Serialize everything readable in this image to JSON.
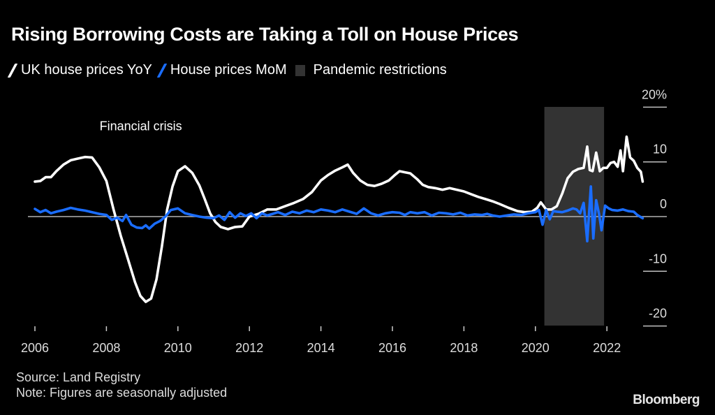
{
  "chart_data": {
    "type": "line",
    "title": "Rising Borrowing Costs are Taking a Toll on House Prices",
    "legend": [
      {
        "label": "UK house prices YoY",
        "color": "#ffffff",
        "marker": "slash"
      },
      {
        "label": "House prices MoM",
        "color": "#1a6dff",
        "marker": "slash"
      },
      {
        "label": "Pandemic restrictions",
        "color": "#333333",
        "marker": "box"
      }
    ],
    "legend_position": "top-left",
    "xlabel": "",
    "ylabel": "",
    "x_ticks": [
      "2006",
      "2008",
      "2010",
      "2012",
      "2014",
      "2016",
      "2018",
      "2020",
      "2022"
    ],
    "xlim": [
      2006,
      2023
    ],
    "y_ticks": [
      {
        "value": 20,
        "label": "20%"
      },
      {
        "value": 10,
        "label": "10"
      },
      {
        "value": 0,
        "label": "0"
      },
      {
        "value": -10,
        "label": "-10"
      },
      {
        "value": -20,
        "label": "-20"
      }
    ],
    "ylim": [
      -20,
      20
    ],
    "y_axis_side": "right",
    "zero_line": true,
    "shaded_regions": [
      {
        "label": "Pandemic restrictions",
        "start": 2020.25,
        "end": 2021.92,
        "color": "#333333"
      }
    ],
    "annotations": [
      {
        "text": "Financial crisis",
        "x": 2009.0,
        "y": 16
      }
    ],
    "series": [
      {
        "name": "UK house prices YoY",
        "color": "#ffffff",
        "x": [
          2006.0,
          2006.15,
          2006.3,
          2006.45,
          2006.6,
          2006.8,
          2007.0,
          2007.2,
          2007.4,
          2007.6,
          2007.8,
          2008.0,
          2008.2,
          2008.4,
          2008.6,
          2008.8,
          2008.95,
          2009.1,
          2009.25,
          2009.4,
          2009.55,
          2009.7,
          2009.85,
          2010.0,
          2010.2,
          2010.4,
          2010.6,
          2010.75,
          2010.9,
          2011.05,
          2011.2,
          2011.4,
          2011.6,
          2011.8,
          2012.0,
          2012.25,
          2012.5,
          2012.75,
          2013.0,
          2013.25,
          2013.5,
          2013.75,
          2014.0,
          2014.2,
          2014.4,
          2014.6,
          2014.75,
          2014.9,
          2015.1,
          2015.3,
          2015.5,
          2015.7,
          2015.9,
          2016.05,
          2016.2,
          2016.35,
          2016.5,
          2016.7,
          2016.85,
          2017.0,
          2017.2,
          2017.4,
          2017.6,
          2017.8,
          2018.0,
          2018.2,
          2018.4,
          2018.6,
          2018.8,
          2019.0,
          2019.25,
          2019.5,
          2019.7,
          2019.9,
          2020.05,
          2020.15,
          2020.3,
          2020.45,
          2020.6,
          2020.75,
          2020.9,
          2021.05,
          2021.2,
          2021.35,
          2021.45,
          2021.52,
          2021.6,
          2021.7,
          2021.8,
          2021.9,
          2022.0,
          2022.1,
          2022.2,
          2022.3,
          2022.38,
          2022.45,
          2022.55,
          2022.65,
          2022.75,
          2022.85,
          2022.95,
          2023.0
        ],
        "values": [
          6.4,
          6.5,
          7.2,
          7.2,
          8.3,
          9.5,
          10.3,
          10.6,
          10.9,
          10.8,
          9.0,
          6.5,
          1.3,
          -3.5,
          -7.7,
          -12.0,
          -14.5,
          -15.6,
          -15.0,
          -11.5,
          -5.5,
          1.3,
          5.5,
          8.3,
          9.2,
          8.0,
          5.7,
          3.2,
          0.6,
          -1.0,
          -1.9,
          -2.3,
          -1.9,
          -1.8,
          0.0,
          0.5,
          1.3,
          1.3,
          1.9,
          2.5,
          3.2,
          4.5,
          6.6,
          7.6,
          8.4,
          9.0,
          9.5,
          8.0,
          6.6,
          5.8,
          5.6,
          6.0,
          6.6,
          7.5,
          8.3,
          8.1,
          7.9,
          6.8,
          5.8,
          5.4,
          5.2,
          4.9,
          5.2,
          4.9,
          4.6,
          4.1,
          3.6,
          3.2,
          2.8,
          2.3,
          1.6,
          1.0,
          0.8,
          0.9,
          1.6,
          2.6,
          1.3,
          1.3,
          1.9,
          4.2,
          7.0,
          8.2,
          8.7,
          8.9,
          12.8,
          8.5,
          8.3,
          11.7,
          8.3,
          8.9,
          8.9,
          9.8,
          10.0,
          9.1,
          12.1,
          8.3,
          14.6,
          10.8,
          10.2,
          8.9,
          8.2,
          6.4
        ]
      },
      {
        "name": "House prices MoM",
        "color": "#1a6dff",
        "x": [
          2006.0,
          2006.15,
          2006.3,
          2006.45,
          2006.6,
          2006.8,
          2007.0,
          2007.2,
          2007.4,
          2007.6,
          2007.8,
          2008.0,
          2008.15,
          2008.3,
          2008.45,
          2008.55,
          2008.7,
          2008.85,
          2009.0,
          2009.1,
          2009.2,
          2009.35,
          2009.5,
          2009.65,
          2009.8,
          2010.0,
          2010.2,
          2010.4,
          2010.6,
          2010.8,
          2011.0,
          2011.15,
          2011.3,
          2011.45,
          2011.6,
          2011.75,
          2011.9,
          2012.05,
          2012.2,
          2012.35,
          2012.5,
          2012.65,
          2012.8,
          2013.0,
          2013.2,
          2013.4,
          2013.6,
          2013.8,
          2014.0,
          2014.2,
          2014.4,
          2014.6,
          2014.8,
          2015.0,
          2015.2,
          2015.4,
          2015.6,
          2015.8,
          2016.0,
          2016.2,
          2016.35,
          2016.5,
          2016.7,
          2016.9,
          2017.1,
          2017.3,
          2017.5,
          2017.7,
          2017.9,
          2018.1,
          2018.3,
          2018.5,
          2018.65,
          2018.8,
          2019.0,
          2019.2,
          2019.4,
          2019.6,
          2019.8,
          2020.0,
          2020.1,
          2020.2,
          2020.3,
          2020.4,
          2020.5,
          2020.6,
          2020.75,
          2020.9,
          2021.05,
          2021.15,
          2021.25,
          2021.35,
          2021.45,
          2021.55,
          2021.62,
          2021.7,
          2021.78,
          2021.85,
          2021.95,
          2022.05,
          2022.15,
          2022.3,
          2022.45,
          2022.6,
          2022.75,
          2022.85,
          2023.0
        ],
        "values": [
          1.4,
          0.8,
          1.2,
          0.6,
          0.9,
          1.2,
          1.6,
          1.3,
          1.1,
          0.8,
          0.5,
          0.3,
          -0.6,
          -0.2,
          -0.8,
          0.3,
          -1.5,
          -2.0,
          -2.1,
          -1.6,
          -2.2,
          -1.3,
          -0.8,
          0.0,
          1.2,
          1.5,
          0.6,
          0.3,
          0.0,
          -0.2,
          -0.3,
          0.2,
          -0.6,
          0.8,
          -0.2,
          0.6,
          0.1,
          0.6,
          -0.3,
          0.6,
          0.2,
          0.5,
          0.8,
          0.3,
          0.9,
          0.6,
          1.1,
          0.8,
          1.3,
          1.1,
          0.8,
          1.3,
          0.9,
          0.5,
          1.5,
          0.6,
          0.2,
          0.6,
          0.8,
          0.7,
          0.3,
          0.8,
          0.6,
          0.8,
          0.2,
          0.7,
          0.6,
          0.4,
          0.7,
          0.2,
          0.4,
          0.3,
          0.5,
          0.2,
          0.0,
          0.2,
          0.4,
          0.3,
          0.6,
          0.8,
          1.2,
          -1.5,
          1.2,
          -0.5,
          1.0,
          0.9,
          0.8,
          1.1,
          1.5,
          1.3,
          0.6,
          2.5,
          -4.5,
          5.5,
          -4.0,
          3.0,
          0.5,
          -2.5,
          2.0,
          1.5,
          1.2,
          1.1,
          1.3,
          1.0,
          0.9,
          0.3,
          -0.3
        ]
      }
    ]
  },
  "header": {
    "title": "Rising Borrowing Costs are Taking a Toll on House Prices"
  },
  "footer": {
    "source": "Source: Land Registry",
    "note": "Note: Figures are seasonally adjusted",
    "brand": "Bloomberg"
  }
}
